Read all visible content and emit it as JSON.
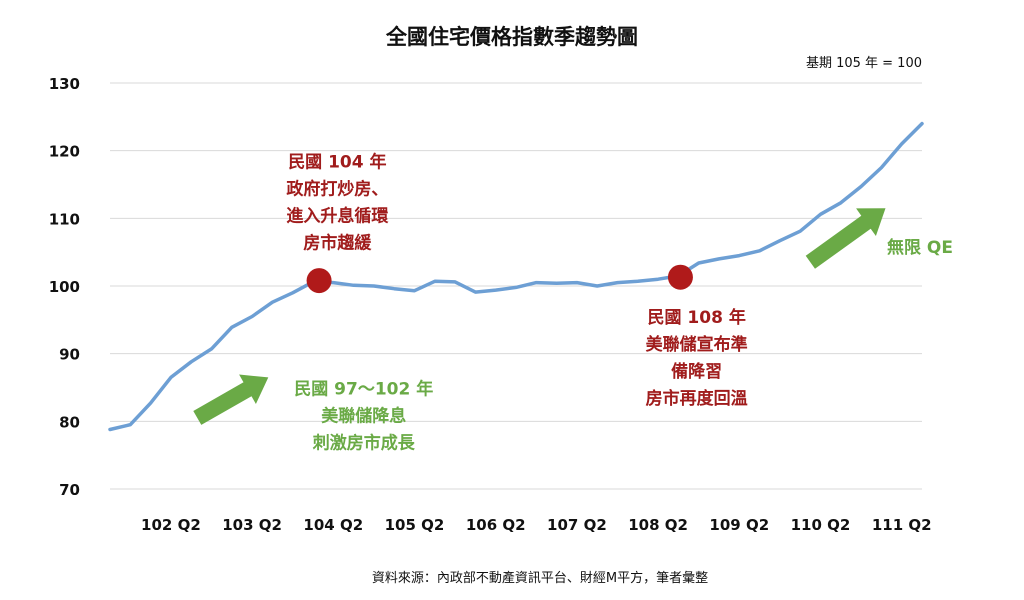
{
  "chart_data": {
    "type": "line",
    "title": "全國住宅價格指數季趨勢圖",
    "subtitle": "基期 105 年 = 100",
    "source": "資料來源：內政部不動產資訊平台、財經M平方，筆者彙整",
    "ylim": [
      70,
      130
    ],
    "yticks": [
      70,
      80,
      90,
      100,
      110,
      120,
      130
    ],
    "xticks": [
      {
        "label": "102 Q2",
        "x": 3
      },
      {
        "label": "103 Q2",
        "x": 7
      },
      {
        "label": "104 Q2",
        "x": 11
      },
      {
        "label": "105 Q2",
        "x": 15
      },
      {
        "label": "106 Q2",
        "x": 19
      },
      {
        "label": "107 Q2",
        "x": 23
      },
      {
        "label": "108 Q2",
        "x": 27
      },
      {
        "label": "109 Q2",
        "x": 31
      },
      {
        "label": "110 Q2",
        "x": 35
      },
      {
        "label": "111 Q2",
        "x": 39
      }
    ],
    "xlim": [
      0,
      40
    ],
    "grid": true,
    "series": [
      {
        "color": "#6d9fd4",
        "values": [
          78.8,
          79.5,
          82.7,
          86.5,
          88.8,
          90.7,
          93.9,
          95.5,
          97.6,
          99.0,
          100.6,
          100.5,
          100.1,
          100.0,
          99.6,
          99.3,
          100.7,
          100.6,
          99.1,
          99.4,
          99.8,
          100.5,
          100.4,
          100.5,
          100.0,
          100.5,
          100.7,
          101.0,
          101.5,
          103.4,
          104.0,
          104.5,
          105.2,
          106.7,
          108.1,
          110.6,
          112.3,
          114.7,
          117.5,
          121.0,
          124.0
        ]
      }
    ],
    "markers": [
      {
        "x": 10.3,
        "y": 100.8,
        "color": "#b01a1a"
      },
      {
        "x": 28.1,
        "y": 101.3,
        "color": "#b01a1a"
      }
    ],
    "arrows": [
      {
        "from": [
          4.3,
          80.5
        ],
        "to": [
          7.8,
          86.5
        ],
        "color": "#6aaa46"
      },
      {
        "from": [
          34.5,
          103.5
        ],
        "to": [
          38.2,
          111.5
        ],
        "color": "#6aaa46"
      }
    ],
    "annotations": [
      {
        "color": "red",
        "x": 11.2,
        "y": 117.5,
        "lines": [
          "民國 104 年",
          "政府打炒房、",
          "進入升息循環",
          "房市趨緩"
        ]
      },
      {
        "color": "red",
        "x": 28.9,
        "y": 94.5,
        "lines": [
          "民國 108 年",
          "美聯儲宣布準",
          "備降習",
          "房市再度回溫"
        ]
      },
      {
        "color": "green",
        "x": 12.5,
        "y": 84.0,
        "lines": [
          "民國 97～102 年",
          "美聯儲降息",
          "刺激房市成長"
        ]
      },
      {
        "color": "green",
        "x": 39.9,
        "y": 104.9,
        "lines": [
          "無限 QE"
        ]
      }
    ]
  }
}
